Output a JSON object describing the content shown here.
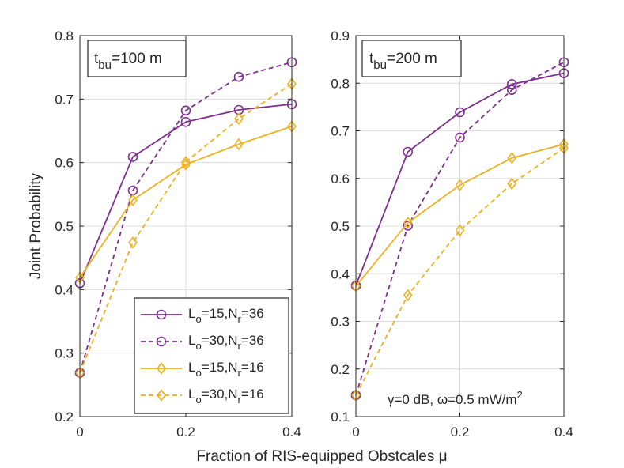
{
  "colors": {
    "purple": "#7E2F8E",
    "gold": "#EDB120",
    "axis": "#262626",
    "grid": "#dcdcdc"
  },
  "chart_data": {
    "type": "line",
    "xlabel": "Fraction of RIS-equipped Obstcales μ",
    "ylabel": "Joint Probability",
    "panels": [
      {
        "label_prefix": "t",
        "label_sub": "bu",
        "label_suffix": "=100 m",
        "xlim": [
          0,
          0.4
        ],
        "ylim": [
          0.2,
          0.8
        ],
        "xticks": [
          0,
          0.2,
          0.4
        ],
        "xtick_labels": [
          "0",
          "0.2",
          "0.4"
        ],
        "yticks": [
          0.2,
          0.3,
          0.4,
          0.5,
          0.6,
          0.7,
          0.8
        ],
        "ytick_labels": [
          "0.2",
          "0.3",
          "0.4",
          "0.5",
          "0.6",
          "0.7",
          "0.8"
        ],
        "x": [
          0,
          0.1,
          0.2,
          0.3,
          0.4
        ],
        "series": [
          {
            "name": "Lo=15,Nr=36",
            "values": [
              0.41,
              0.609,
              0.664,
              0.683,
              0.692
            ]
          },
          {
            "name": "Lo=30,Nr=36",
            "values": [
              0.269,
              0.556,
              0.682,
              0.735,
              0.758
            ]
          },
          {
            "name": "Lo=15,Nr=16",
            "values": [
              0.419,
              0.541,
              0.597,
              0.629,
              0.657
            ]
          },
          {
            "name": "Lo=30,Nr=16",
            "values": [
              0.269,
              0.474,
              0.601,
              0.669,
              0.724
            ]
          }
        ]
      },
      {
        "label_prefix": "t",
        "label_sub": "bu",
        "label_suffix": "=200 m",
        "xlim": [
          0,
          0.4
        ],
        "ylim": [
          0.1,
          0.9
        ],
        "xticks": [
          0,
          0.2,
          0.4
        ],
        "xtick_labels": [
          "0",
          "0.2",
          "0.4"
        ],
        "yticks": [
          0.1,
          0.2,
          0.3,
          0.4,
          0.5,
          0.6,
          0.7,
          0.8,
          0.9
        ],
        "ytick_labels": [
          "0.1",
          "0.2",
          "0.3",
          "0.4",
          "0.5",
          "0.6",
          "0.7",
          "0.8",
          "0.9"
        ],
        "x": [
          0,
          0.1,
          0.2,
          0.3,
          0.4
        ],
        "annotation": "γ=0 dB, ω=0.5 mW/m",
        "annotation_sup": "2",
        "series": [
          {
            "name": "Lo=15,Nr=36",
            "values": [
              0.375,
              0.656,
              0.739,
              0.798,
              0.821
            ]
          },
          {
            "name": "Lo=30,Nr=36",
            "values": [
              0.145,
              0.501,
              0.686,
              0.786,
              0.844
            ]
          },
          {
            "name": "Lo=15,Nr=16",
            "values": [
              0.374,
              0.507,
              0.586,
              0.643,
              0.672
            ]
          },
          {
            "name": "Lo=30,Nr=16",
            "values": [
              0.145,
              0.355,
              0.491,
              0.589,
              0.664
            ]
          }
        ]
      }
    ],
    "legend": {
      "placement": "bottom-right of left panel",
      "entries": [
        {
          "pre": "L",
          "sub1": "o",
          "mid": "=15,N",
          "sub2": "r",
          "post": "=36",
          "series": "Lo=15,Nr=36"
        },
        {
          "pre": "L",
          "sub1": "o",
          "mid": "=30,N",
          "sub2": "r",
          "post": "=36",
          "series": "Lo=30,Nr=36"
        },
        {
          "pre": "L",
          "sub1": "o",
          "mid": "=15,N",
          "sub2": "r",
          "post": "=16",
          "series": "Lo=15,Nr=16"
        },
        {
          "pre": "L",
          "sub1": "o",
          "mid": "=30,N",
          "sub2": "r",
          "post": "=16",
          "series": "Lo=30,Nr=16"
        }
      ]
    },
    "series_styles": [
      {
        "name": "Lo=15,Nr=36",
        "color": "#7E2F8E",
        "dash": "solid",
        "marker": "circle"
      },
      {
        "name": "Lo=30,Nr=36",
        "color": "#7E2F8E",
        "dash": "dashed",
        "marker": "circle"
      },
      {
        "name": "Lo=15,Nr=16",
        "color": "#EDB120",
        "dash": "solid",
        "marker": "diamond"
      },
      {
        "name": "Lo=30,Nr=16",
        "color": "#EDB120",
        "dash": "dashed",
        "marker": "diamond"
      }
    ]
  }
}
